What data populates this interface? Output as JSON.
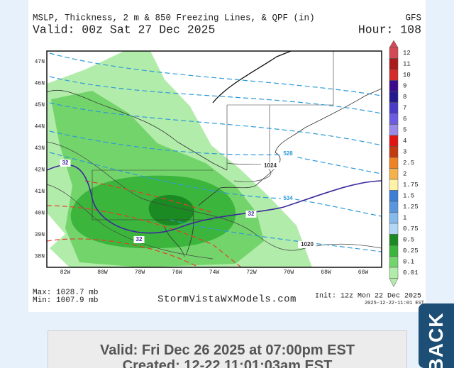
{
  "header": {
    "title": "MSLP, Thickness, 2 m & 850 Freezing Lines, & QPF (in)",
    "model": "GFS",
    "valid": "Valid: 00z Sat 27 Dec 2025",
    "hour": "Hour: 108"
  },
  "map": {
    "lat_labels": [
      "47N",
      "46N",
      "45N",
      "44N",
      "43N",
      "42N",
      "41N",
      "40N",
      "39N",
      "38N"
    ],
    "lon_labels": [
      "82W",
      "80W",
      "78W",
      "76W",
      "74W",
      "72W",
      "70W",
      "68W",
      "66W"
    ],
    "thickness_labels": [
      "528",
      "534"
    ],
    "isobar_labels": [
      "1024",
      "1020"
    ],
    "freezing_labels": [
      "32",
      "32",
      "32"
    ]
  },
  "colorbar": {
    "items": [
      {
        "label": "12",
        "color": "#d24a55"
      },
      {
        "label": "11",
        "color": "#a81c1c"
      },
      {
        "label": "10",
        "color": "#d42a2a"
      },
      {
        "label": "9",
        "color": "#3c0a8c"
      },
      {
        "label": "8",
        "color": "#24198f"
      },
      {
        "label": "7",
        "color": "#4b3cc8"
      },
      {
        "label": "6",
        "color": "#6d5ce0"
      },
      {
        "label": "5",
        "color": "#9a8ae8"
      },
      {
        "label": "4",
        "color": "#e01414"
      },
      {
        "label": "3",
        "color": "#c43a10"
      },
      {
        "label": "2.5",
        "color": "#ef8224"
      },
      {
        "label": "2",
        "color": "#f6b24a"
      },
      {
        "label": "1.75",
        "color": "#fff1a6"
      },
      {
        "label": "1.5",
        "color": "#3d7fd4"
      },
      {
        "label": "1.25",
        "color": "#5a96e0"
      },
      {
        "label": "1",
        "color": "#86b9ec"
      },
      {
        "label": "0.75",
        "color": "#b2d6f3"
      },
      {
        "label": "0.5",
        "color": "#1c8a22"
      },
      {
        "label": "0.25",
        "color": "#3cb53c"
      },
      {
        "label": "0.1",
        "color": "#74d46c"
      },
      {
        "label": "0.01",
        "color": "#b2ecaa"
      }
    ]
  },
  "footer": {
    "max": "Max: 1028.7 mb",
    "min": "Min: 1007.9 mb",
    "site": "StormVistaWxModels.com",
    "init": "Init: 12z Mon 22 Dec 2025",
    "stamp": "2025-12-22-11:01 EST"
  },
  "info_box": {
    "valid": "Valid: Fri Dec 26 2025 at 07:00pm EST",
    "created": "Created: 12-22 11:01:03am EST"
  },
  "back_button": "BACK"
}
